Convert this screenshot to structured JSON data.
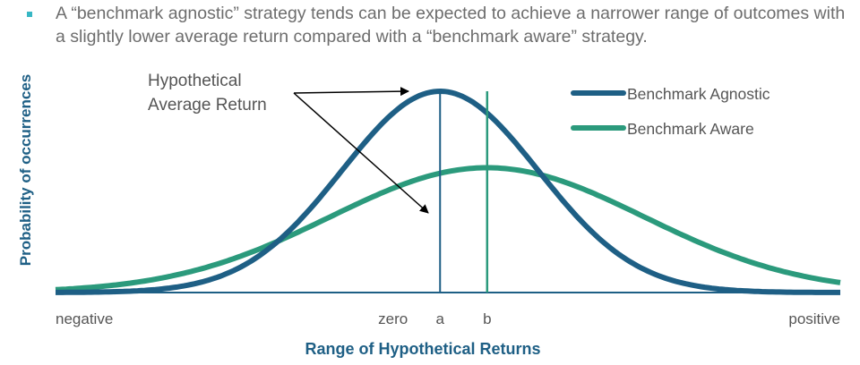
{
  "bullet": {
    "text": "A “benchmark agnostic” strategy tends can be expected to achieve a narrower range of outcomes with a slightly lower average return compared with a “benchmark aware” strategy."
  },
  "colors": {
    "agnostic": "#1e5f85",
    "aware": "#2b9a7c",
    "axis_label": "#1e5f85",
    "bullet": "#37b7c4"
  },
  "chart_data": {
    "type": "line",
    "xlabel": "Range of Hypothetical Returns",
    "ylabel": "Probability of occurrences",
    "x_tick_labels": [
      "negative",
      "zero",
      "a",
      "b",
      "positive"
    ],
    "x_ticks": [
      -5.0,
      -0.7,
      -0.1,
      0.5,
      5.0
    ],
    "xlim": [
      -5.0,
      5.0
    ],
    "ylim": [
      0,
      1.0
    ],
    "grid": false,
    "legend_position": "top-right",
    "series": [
      {
        "name": "Benchmark Agnostic",
        "color_key": "agnostic",
        "mean": -0.1,
        "sd": 1.25,
        "peak": 1.0
      },
      {
        "name": "Benchmark Aware",
        "color_key": "aware",
        "mean": 0.5,
        "sd": 2.0,
        "peak": 0.62
      }
    ],
    "markers": [
      {
        "label": "a",
        "x": -0.1,
        "color_key": "agnostic"
      },
      {
        "label": "b",
        "x": 0.5,
        "color_key": "aware"
      }
    ],
    "annotation": {
      "lines": [
        "Hypothetical",
        "Average Return"
      ]
    }
  }
}
